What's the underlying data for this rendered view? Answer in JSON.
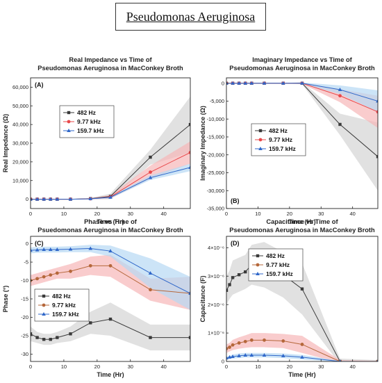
{
  "header": {
    "title": "Pseudomonas Aeruginosa"
  },
  "colors": {
    "s482": "#3a3a3a",
    "s977": "#e8484a",
    "s1597": "#2f67c9",
    "s977_phase": "#b5673a",
    "band482": "#d4d4d4",
    "band977": "#f6b7b8",
    "band1597": "#b6d9f3"
  },
  "chart_data": [
    {
      "type": "line",
      "panel_label": "(A)",
      "title": [
        "Real Impedance vs Time of",
        "Pseudomonas Aeruginosa in MacConkey Broth"
      ],
      "xlabel": "Time (Hr)",
      "ylabel": "Real Impedance (Ω)",
      "xlim": [
        0,
        48
      ],
      "ylim": [
        -5000,
        65000
      ],
      "xticks": [
        "0",
        "10",
        "20",
        "30",
        "40"
      ],
      "yticks": [
        "0",
        "10,000",
        "20,000",
        "30,000",
        "40,000",
        "50,000",
        "60,000"
      ],
      "legend": "upper-left-inside",
      "x": [
        0,
        2,
        4,
        6,
        8,
        12,
        18,
        24,
        36,
        48
      ],
      "series": [
        {
          "name": "482 Hz",
          "marker": "square",
          "values": [
            0,
            0,
            0,
            0,
            0,
            0,
            300,
            1500,
            22500,
            40000
          ],
          "band": [
            0,
            0,
            0,
            0,
            0,
            0,
            400,
            1500,
            4000,
            15000
          ]
        },
        {
          "name": "9.77 kHz",
          "marker": "circle",
          "values": [
            0,
            0,
            0,
            0,
            0,
            0,
            200,
            1200,
            14500,
            25000
          ],
          "band": [
            0,
            0,
            0,
            0,
            0,
            0,
            300,
            1000,
            3500,
            6000
          ]
        },
        {
          "name": "159.7 kHz",
          "marker": "triangle",
          "values": [
            0,
            0,
            0,
            0,
            0,
            0,
            200,
            1000,
            11500,
            17000
          ],
          "band": [
            0,
            0,
            0,
            0,
            0,
            0,
            200,
            600,
            1200,
            2000
          ]
        }
      ]
    },
    {
      "type": "line",
      "panel_label": "(B)",
      "title": [
        "Imaginary Impedance vs Time of",
        "Pseudomonas Aeruginosa in MacConkey Broth"
      ],
      "xlabel": "Time (Hr)",
      "ylabel": "Imaginary Impedance (Ω)",
      "xlim": [
        0,
        48
      ],
      "ylim": [
        -35000,
        1500
      ],
      "xticks": [
        "0",
        "10",
        "20",
        "30",
        "40"
      ],
      "yticks": [
        "0",
        "-5,000",
        "-10,000",
        "-15,000",
        "-20,000",
        "-25,000",
        "-30,000",
        "-35,000"
      ],
      "legend": "center-left-inside",
      "x": [
        0,
        2,
        4,
        6,
        8,
        12,
        18,
        24,
        36,
        48
      ],
      "series": [
        {
          "name": "482 Hz",
          "marker": "square",
          "values": [
            0,
            0,
            0,
            0,
            0,
            0,
            0,
            0,
            -11500,
            -20500
          ],
          "band": [
            0,
            0,
            0,
            0,
            0,
            0,
            0,
            300,
            3000,
            9500
          ]
        },
        {
          "name": "9.77 kHz",
          "marker": "circle",
          "values": [
            0,
            0,
            0,
            0,
            0,
            0,
            0,
            0,
            -3500,
            -8000
          ],
          "band": [
            0,
            0,
            0,
            0,
            0,
            0,
            0,
            200,
            1800,
            4500
          ]
        },
        {
          "name": "159.7 kHz",
          "marker": "triangle",
          "values": [
            0,
            0,
            0,
            0,
            0,
            0,
            0,
            0,
            -1800,
            -5000
          ],
          "band": [
            0,
            0,
            0,
            0,
            0,
            0,
            0,
            200,
            1200,
            3000
          ]
        }
      ]
    },
    {
      "type": "line",
      "panel_label": "(C)",
      "title": [
        "Phase vs Time of",
        "Psuedomonas Aeruginosa in MacConkey Broth"
      ],
      "xlabel": "Time (Hr)",
      "ylabel": "Phase (°)",
      "xlim": [
        0,
        48
      ],
      "ylim": [
        -32,
        2
      ],
      "xticks": [
        "0",
        "10",
        "20",
        "30",
        "40"
      ],
      "yticks": [
        "0",
        "-5",
        "-10",
        "-15",
        "-20",
        "-25",
        "-30"
      ],
      "legend": "lower-left-inside",
      "x": [
        0,
        2,
        4,
        6,
        8,
        12,
        18,
        24,
        36,
        48
      ],
      "series": [
        {
          "name": "482 Hz",
          "marker": "square",
          "values": [
            -24.5,
            -25.5,
            -26,
            -26,
            -25.5,
            -24.5,
            -21.5,
            -20.5,
            -25.5,
            -25.5
          ],
          "band": [
            2,
            1.5,
            1.5,
            1.5,
            1.5,
            2,
            3,
            4.5,
            3.5,
            3.5
          ]
        },
        {
          "name": "9.77 kHz",
          "marker": "circle",
          "values": [
            -10,
            -9.5,
            -9,
            -8.5,
            -8,
            -7.5,
            -6,
            -6,
            -12.5,
            -13.5
          ],
          "band": [
            1.5,
            1.5,
            1.5,
            1.5,
            1.5,
            2,
            2.5,
            3,
            3,
            4.5
          ]
        },
        {
          "name": "159.7 kHz",
          "marker": "triangle",
          "values": [
            -1.8,
            -1.7,
            -1.6,
            -1.6,
            -1.6,
            -1.5,
            -1.3,
            -2,
            -8,
            -13.5
          ],
          "band": [
            0.8,
            0.8,
            0.8,
            0.8,
            0.8,
            0.8,
            1,
            1.5,
            4,
            4.5
          ]
        }
      ]
    },
    {
      "type": "line",
      "panel_label": "(D)",
      "title": [
        "Capacitance vs Time of",
        "Pseudomonas Aeruginosa in MacConkey Broth"
      ],
      "xlabel": "Time (Hr)",
      "ylabel": "Capacitance (F)",
      "xlim": [
        0,
        48
      ],
      "ylim": [
        0,
        4.4
      ],
      "xticks": [
        "0",
        "10",
        "20",
        "30",
        "40"
      ],
      "yticks": [
        "0",
        "1×10⁻⁶",
        "2×10⁻⁶",
        "3×10⁻⁶",
        "4×10⁻⁶"
      ],
      "legend": "upper-left-inside",
      "x": [
        0,
        1,
        2,
        4,
        6,
        8,
        12,
        18,
        24,
        36,
        48
      ],
      "series": [
        {
          "name": "482 Hz",
          "marker": "square",
          "values": [
            2.5,
            2.7,
            2.95,
            3.05,
            3.15,
            3.4,
            3.4,
            3.05,
            2.55,
            0,
            0
          ],
          "band": [
            0.5,
            0.5,
            0.6,
            0.6,
            0.6,
            0.7,
            0.8,
            0.8,
            0.9,
            0.1,
            0.05
          ]
        },
        {
          "name": "9.77 kHz",
          "marker": "circle",
          "values": [
            0.45,
            0.5,
            0.58,
            0.65,
            0.7,
            0.75,
            0.75,
            0.72,
            0.6,
            0,
            0
          ],
          "band": [
            0.15,
            0.15,
            0.18,
            0.2,
            0.22,
            0.25,
            0.25,
            0.25,
            0.3,
            0.05,
            0.02
          ]
        },
        {
          "name": "159.7 kHz",
          "marker": "triangle",
          "values": [
            0.12,
            0.15,
            0.17,
            0.2,
            0.22,
            0.22,
            0.22,
            0.2,
            0.15,
            0,
            0
          ],
          "band": [
            0.05,
            0.05,
            0.07,
            0.08,
            0.08,
            0.08,
            0.08,
            0.08,
            0.08,
            0.02,
            0.01
          ]
        }
      ]
    }
  ]
}
